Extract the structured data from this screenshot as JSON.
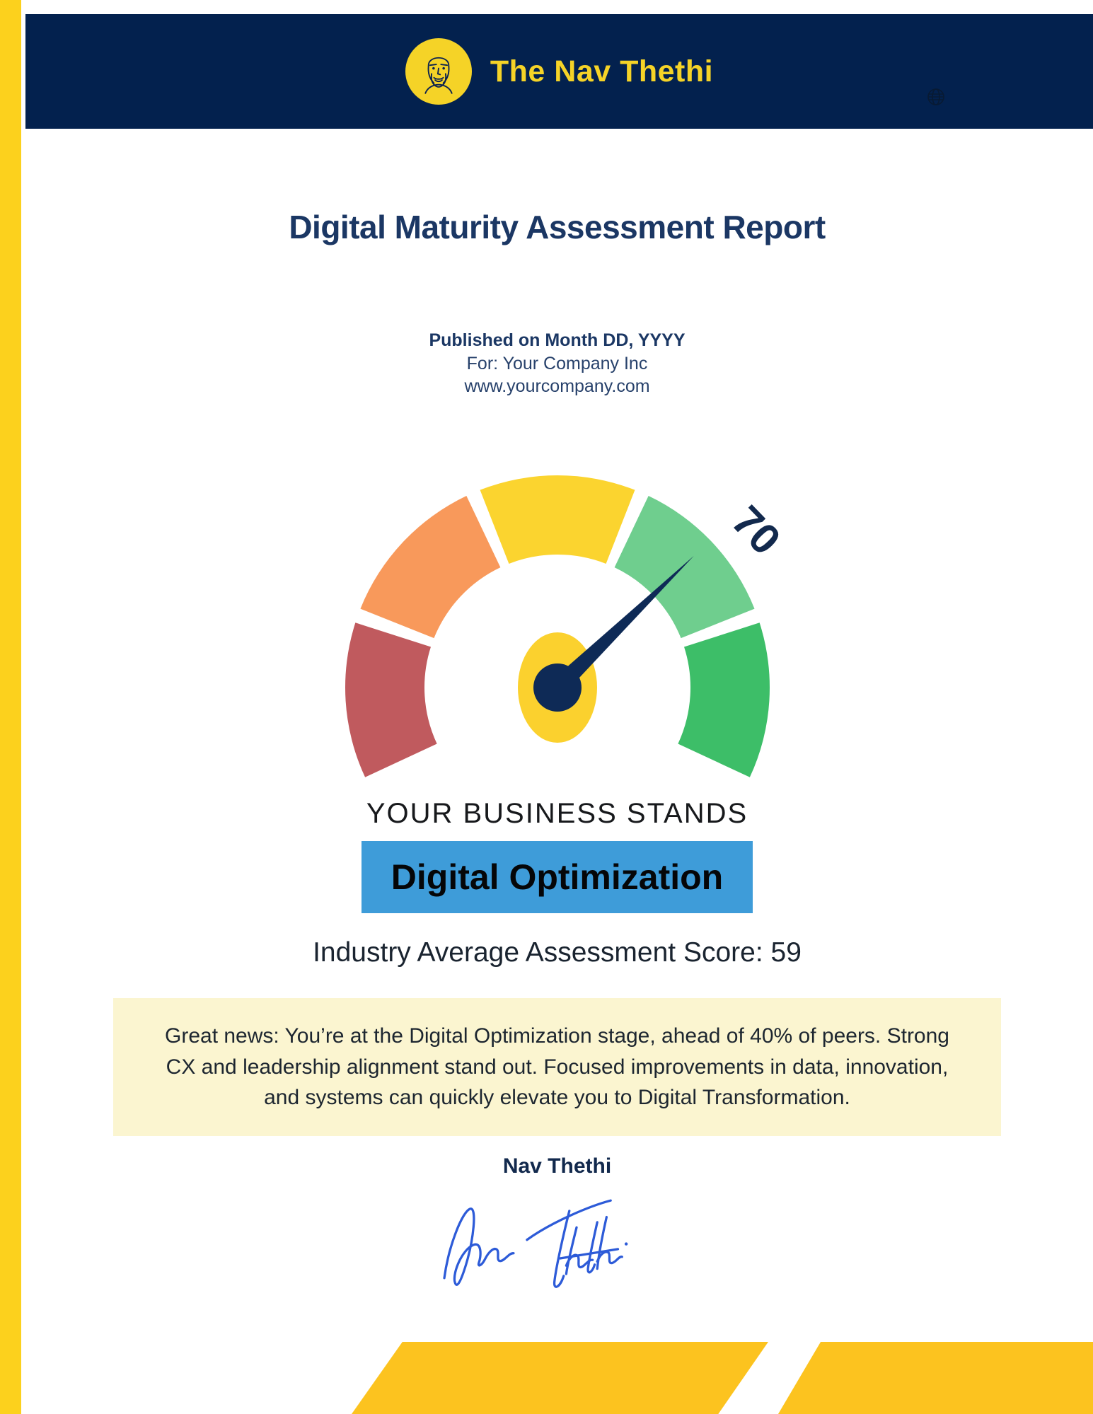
{
  "page": {
    "accent_stripe_color": "#FCD11D",
    "footer_shape_color": "#FCC31F"
  },
  "header": {
    "bg_color": "#03214E",
    "brand": "The Nav Thethi",
    "brand_color": "#F5D327",
    "logo_icon": "face-portrait-in-yellow-circle",
    "globe_icon": "globe"
  },
  "report": {
    "title": "Digital Maturity Assessment Report",
    "published_line": "Published on Month DD, YYYY",
    "for_line": "For: Your Company Inc",
    "website": "www.yourcompany.com"
  },
  "chart_data": {
    "type": "gauge",
    "title": "Digital maturity score gauge",
    "value": 70,
    "value_label": "70",
    "min": 0,
    "max": 100,
    "start_angle": -115,
    "end_angle": 115,
    "segment_gap_deg": 4,
    "industry_average": 59,
    "segments": [
      {
        "name": "band-1",
        "color": "#C05A5E"
      },
      {
        "name": "band-2",
        "color": "#F8995B"
      },
      {
        "name": "band-3",
        "color": "#FBD42F"
      },
      {
        "name": "band-4",
        "color": "#6FCE8E"
      },
      {
        "name": "band-5",
        "color": "#3DBE68"
      }
    ],
    "needle_color": "#0E2A56",
    "hub_outer_color": "#FBD12E",
    "hub_inner_color": "#0E2A56",
    "score_text_color": "#12294D"
  },
  "result": {
    "stands_label": "YOUR BUSINESS STANDS",
    "stage": "Digital Optimization",
    "stage_bg_color": "#3E9CD9",
    "industry_line": "Industry Average Assessment Score: 59"
  },
  "summary": {
    "bg_color": "#FBF5D0",
    "text": "Great news: You’re at the Digital Optimization stage, ahead of 40% of peers. Strong CX and leadership alignment stand out. Focused improvements in data, innovation, and systems can quickly elevate you to Digital Transformation."
  },
  "signature": {
    "name": "Nav Thethi",
    "ink_color": "#2D5BD8"
  }
}
